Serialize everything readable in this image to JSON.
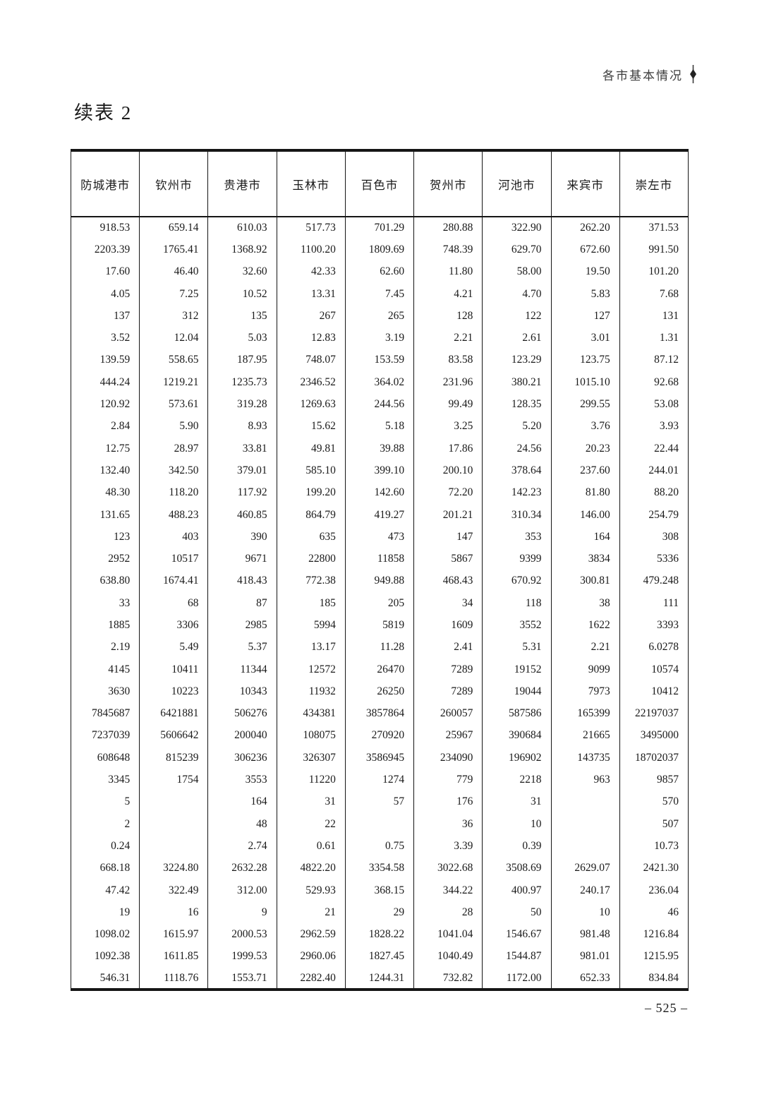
{
  "header": {
    "section_title": "各市基本情况",
    "marker_icon": "diamond-with-line"
  },
  "title": "续表 2",
  "table": {
    "columns": [
      "防城港市",
      "钦州市",
      "贵港市",
      "玉林市",
      "百色市",
      "贺州市",
      "河池市",
      "来宾市",
      "崇左市"
    ],
    "rows": [
      [
        "918.53",
        "659.14",
        "610.03",
        "517.73",
        "701.29",
        "280.88",
        "322.90",
        "262.20",
        "371.53"
      ],
      [
        "2203.39",
        "1765.41",
        "1368.92",
        "1100.20",
        "1809.69",
        "748.39",
        "629.70",
        "672.60",
        "991.50"
      ],
      [
        "17.60",
        "46.40",
        "32.60",
        "42.33",
        "62.60",
        "11.80",
        "58.00",
        "19.50",
        "101.20"
      ],
      [
        "4.05",
        "7.25",
        "10.52",
        "13.31",
        "7.45",
        "4.21",
        "4.70",
        "5.83",
        "7.68"
      ],
      [
        "137",
        "312",
        "135",
        "267",
        "265",
        "128",
        "122",
        "127",
        "131"
      ],
      [
        "3.52",
        "12.04",
        "5.03",
        "12.83",
        "3.19",
        "2.21",
        "2.61",
        "3.01",
        "1.31"
      ],
      [
        "139.59",
        "558.65",
        "187.95",
        "748.07",
        "153.59",
        "83.58",
        "123.29",
        "123.75",
        "87.12"
      ],
      [
        "444.24",
        "1219.21",
        "1235.73",
        "2346.52",
        "364.02",
        "231.96",
        "380.21",
        "1015.10",
        "92.68"
      ],
      [
        "120.92",
        "573.61",
        "319.28",
        "1269.63",
        "244.56",
        "99.49",
        "128.35",
        "299.55",
        "53.08"
      ],
      [
        "2.84",
        "5.90",
        "8.93",
        "15.62",
        "5.18",
        "3.25",
        "5.20",
        "3.76",
        "3.93"
      ],
      [
        "12.75",
        "28.97",
        "33.81",
        "49.81",
        "39.88",
        "17.86",
        "24.56",
        "20.23",
        "22.44"
      ],
      [
        "132.40",
        "342.50",
        "379.01",
        "585.10",
        "399.10",
        "200.10",
        "378.64",
        "237.60",
        "244.01"
      ],
      [
        "48.30",
        "118.20",
        "117.92",
        "199.20",
        "142.60",
        "72.20",
        "142.23",
        "81.80",
        "88.20"
      ],
      [
        "131.65",
        "488.23",
        "460.85",
        "864.79",
        "419.27",
        "201.21",
        "310.34",
        "146.00",
        "254.79"
      ],
      [
        "123",
        "403",
        "390",
        "635",
        "473",
        "147",
        "353",
        "164",
        "308"
      ],
      [
        "2952",
        "10517",
        "9671",
        "22800",
        "11858",
        "5867",
        "9399",
        "3834",
        "5336"
      ],
      [
        "638.80",
        "1674.41",
        "418.43",
        "772.38",
        "949.88",
        "468.43",
        "670.92",
        "300.81",
        "479.248"
      ],
      [
        "33",
        "68",
        "87",
        "185",
        "205",
        "34",
        "118",
        "38",
        "111"
      ],
      [
        "1885",
        "3306",
        "2985",
        "5994",
        "5819",
        "1609",
        "3552",
        "1622",
        "3393"
      ],
      [
        "2.19",
        "5.49",
        "5.37",
        "13.17",
        "11.28",
        "2.41",
        "5.31",
        "2.21",
        "6.0278"
      ],
      [
        "4145",
        "10411",
        "11344",
        "12572",
        "26470",
        "7289",
        "19152",
        "9099",
        "10574"
      ],
      [
        "3630",
        "10223",
        "10343",
        "11932",
        "26250",
        "7289",
        "19044",
        "7973",
        "10412"
      ],
      [
        "7845687",
        "6421881",
        "506276",
        "434381",
        "3857864",
        "260057",
        "587586",
        "165399",
        "22197037"
      ],
      [
        "7237039",
        "5606642",
        "200040",
        "108075",
        "270920",
        "25967",
        "390684",
        "21665",
        "3495000"
      ],
      [
        "608648",
        "815239",
        "306236",
        "326307",
        "3586945",
        "234090",
        "196902",
        "143735",
        "18702037"
      ],
      [
        "3345",
        "1754",
        "3553",
        "11220",
        "1274",
        "779",
        "2218",
        "963",
        "9857"
      ],
      [
        "5",
        "",
        "164",
        "31",
        "57",
        "176",
        "31",
        "",
        "570"
      ],
      [
        "2",
        "",
        "48",
        "22",
        "",
        "36",
        "10",
        "",
        "507"
      ],
      [
        "0.24",
        "",
        "2.74",
        "0.61",
        "0.75",
        "3.39",
        "0.39",
        "",
        "10.73"
      ],
      [
        "668.18",
        "3224.80",
        "2632.28",
        "4822.20",
        "3354.58",
        "3022.68",
        "3508.69",
        "2629.07",
        "2421.30"
      ],
      [
        "47.42",
        "322.49",
        "312.00",
        "529.93",
        "368.15",
        "344.22",
        "400.97",
        "240.17",
        "236.04"
      ],
      [
        "19",
        "16",
        "9",
        "21",
        "29",
        "28",
        "50",
        "10",
        "46"
      ],
      [
        "1098.02",
        "1615.97",
        "2000.53",
        "2962.59",
        "1828.22",
        "1041.04",
        "1546.67",
        "981.48",
        "1216.84"
      ],
      [
        "1092.38",
        "1611.85",
        "1999.53",
        "2960.06",
        "1827.45",
        "1040.49",
        "1544.87",
        "981.01",
        "1215.95"
      ],
      [
        "546.31",
        "1118.76",
        "1553.71",
        "2282.40",
        "1244.31",
        "732.82",
        "1172.00",
        "652.33",
        "834.84"
      ]
    ]
  },
  "footer": {
    "page_number": "– 525 –"
  },
  "colors": {
    "text": "#1a1a1a",
    "border": "#151515",
    "running_header": "#3d3d3d"
  }
}
